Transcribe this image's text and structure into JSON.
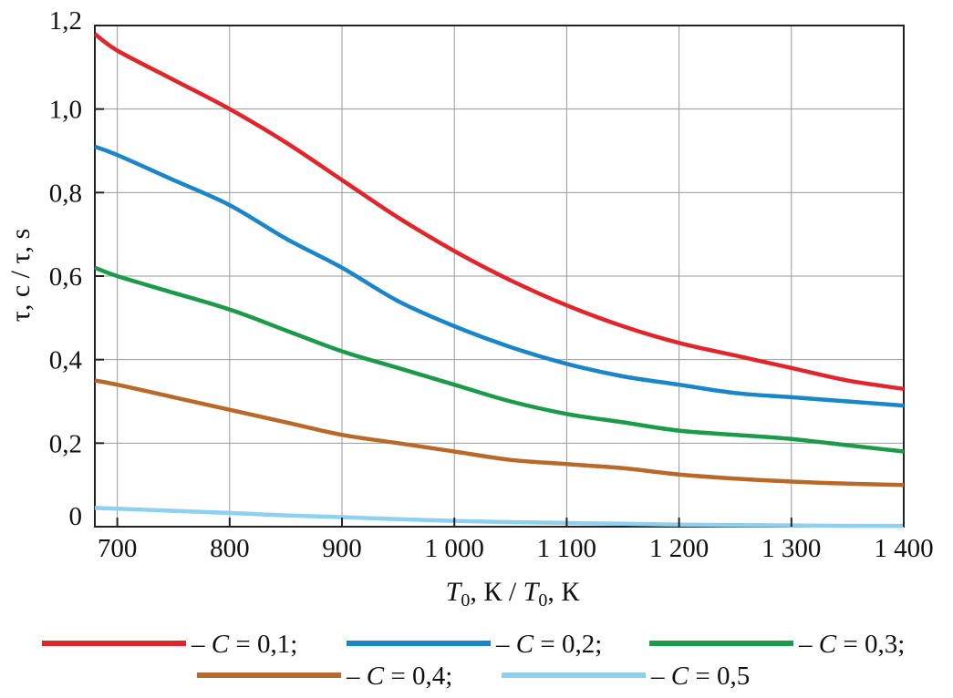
{
  "chart_data": {
    "type": "line",
    "title": "",
    "xlabel": {
      "symbol": "T",
      "subscript": "0",
      "rest": ", К / ",
      "symbol2": "T",
      "subscript2": "0",
      "rest2": ", К"
    },
    "ylabel": "τ, с / τ, s",
    "xlim": [
      680,
      1400
    ],
    "ylim": [
      0,
      1.2
    ],
    "x_ticks": [
      {
        "value": 700,
        "label": "700"
      },
      {
        "value": 800,
        "label": "800"
      },
      {
        "value": 900,
        "label": "900"
      },
      {
        "value": 1000,
        "label": "1 000"
      },
      {
        "value": 1100,
        "label": "1 100"
      },
      {
        "value": 1200,
        "label": "1 200"
      },
      {
        "value": 1300,
        "label": "1 300"
      },
      {
        "value": 1400,
        "label": "1 400"
      }
    ],
    "y_ticks": [
      {
        "value": 0,
        "label": "0"
      },
      {
        "value": 0.2,
        "label": "0,2"
      },
      {
        "value": 0.4,
        "label": "0,4"
      },
      {
        "value": 0.6,
        "label": "0,6"
      },
      {
        "value": 0.8,
        "label": "0,8"
      },
      {
        "value": 1.0,
        "label": "1,0"
      },
      {
        "value": 1.2,
        "label": "1,2"
      }
    ],
    "grid": true,
    "legend_position": "bottom",
    "x": [
      680,
      700,
      750,
      800,
      850,
      900,
      950,
      1000,
      1050,
      1100,
      1150,
      1200,
      1250,
      1300,
      1350,
      1400
    ],
    "series": [
      {
        "name": "– C = 0,1;",
        "color": "#e0252b",
        "values": [
          1.18,
          1.14,
          1.07,
          1.0,
          0.92,
          0.83,
          0.74,
          0.66,
          0.59,
          0.53,
          0.48,
          0.44,
          0.41,
          0.38,
          0.35,
          0.33
        ]
      },
      {
        "name": "– C = 0,2;",
        "color": "#1a85c8",
        "values": [
          0.91,
          0.89,
          0.83,
          0.77,
          0.69,
          0.62,
          0.54,
          0.48,
          0.43,
          0.39,
          0.36,
          0.34,
          0.32,
          0.31,
          0.3,
          0.29
        ]
      },
      {
        "name": "– C = 0,3;",
        "color": "#1c9a4a",
        "values": [
          0.62,
          0.6,
          0.56,
          0.52,
          0.47,
          0.42,
          0.38,
          0.34,
          0.3,
          0.27,
          0.25,
          0.23,
          0.22,
          0.21,
          0.195,
          0.18
        ]
      },
      {
        "name": "– C = 0,4;",
        "color": "#b8692a",
        "values": [
          0.35,
          0.34,
          0.31,
          0.28,
          0.25,
          0.22,
          0.2,
          0.18,
          0.16,
          0.15,
          0.14,
          0.125,
          0.115,
          0.108,
          0.103,
          0.1
        ]
      },
      {
        "name": "– C = 0,5",
        "color": "#8dd0ef",
        "values": [
          0.045,
          0.043,
          0.038,
          0.033,
          0.027,
          0.023,
          0.018,
          0.014,
          0.011,
          0.009,
          0.007,
          0.005,
          0.004,
          0.003,
          0.002,
          0.002
        ]
      }
    ],
    "legend_rows": [
      [
        0,
        1,
        2
      ],
      [
        3,
        4
      ]
    ]
  }
}
